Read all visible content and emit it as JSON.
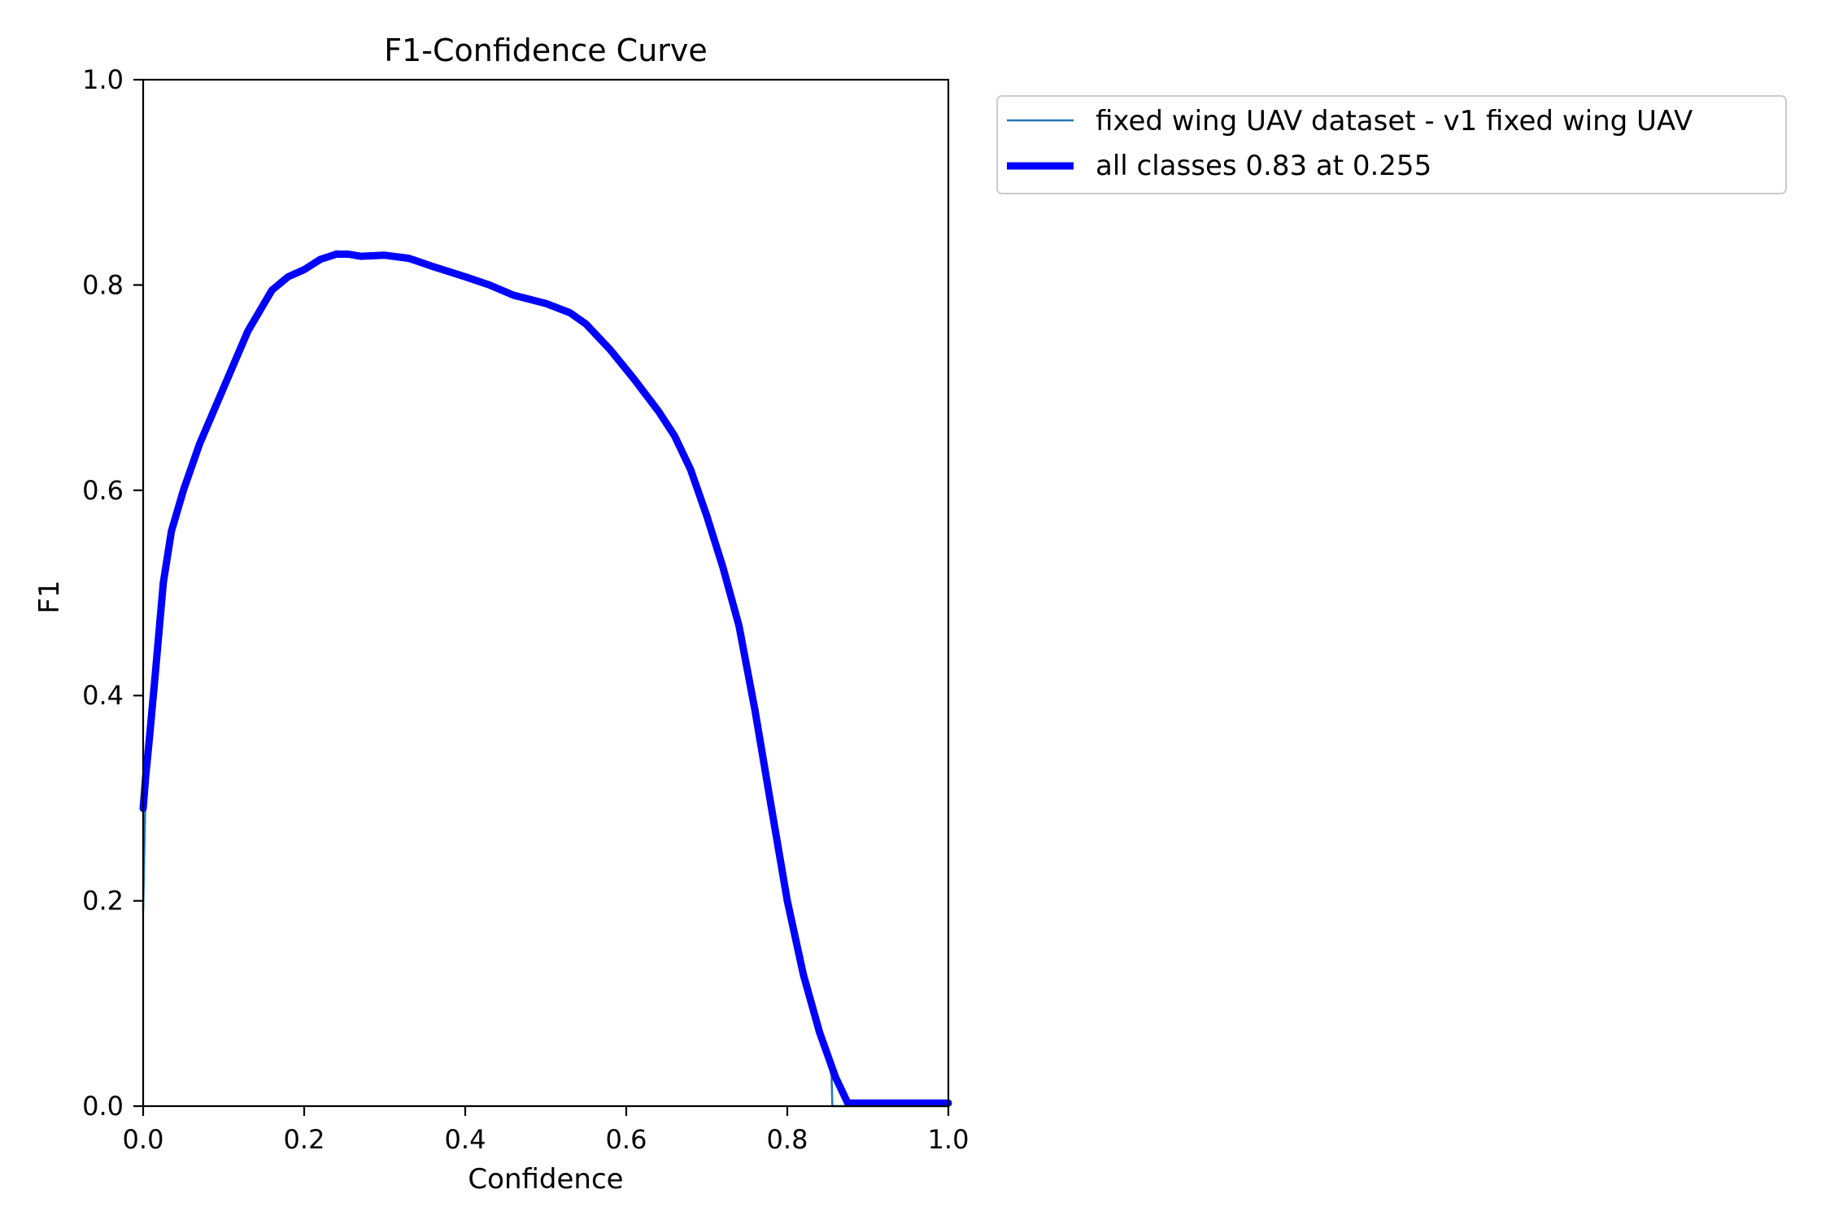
{
  "chart_data": {
    "type": "line",
    "title": "F1-Confidence Curve",
    "xlabel": "Confidence",
    "ylabel": "F1",
    "xlim": [
      0,
      1
    ],
    "ylim": [
      0,
      1
    ],
    "xticks": [
      "0.0",
      "0.2",
      "0.4",
      "0.6",
      "0.8",
      "1.0"
    ],
    "yticks": [
      "0.0",
      "0.2",
      "0.4",
      "0.6",
      "0.8",
      "1.0"
    ],
    "grid": false,
    "legend_position": "outside-upper-right",
    "series": [
      {
        "name": "fixed wing UAV dataset - v1 fixed wing UAV",
        "color": "#1f77b4",
        "style": "thin",
        "x": [
          0,
          0.003,
          0.008,
          0.015,
          0.025,
          0.035,
          0.05,
          0.07,
          0.1,
          0.13,
          0.16,
          0.18,
          0.2,
          0.22,
          0.24,
          0.255,
          0.27,
          0.3,
          0.33,
          0.36,
          0.4,
          0.43,
          0.46,
          0.5,
          0.53,
          0.55,
          0.58,
          0.61,
          0.64,
          0.66,
          0.68,
          0.7,
          0.72,
          0.74,
          0.76,
          0.78,
          0.8,
          0.82,
          0.84,
          0.855,
          0.856,
          0.87,
          0.9,
          0.95,
          1.0
        ],
        "y": [
          0.19,
          0.31,
          0.36,
          0.42,
          0.51,
          0.56,
          0.6,
          0.645,
          0.7,
          0.755,
          0.795,
          0.808,
          0.815,
          0.825,
          0.833,
          0.83,
          0.828,
          0.829,
          0.825,
          0.818,
          0.808,
          0.8,
          0.79,
          0.782,
          0.773,
          0.762,
          0.737,
          0.708,
          0.677,
          0.653,
          0.62,
          0.575,
          0.525,
          0.468,
          0.385,
          0.292,
          0.2,
          0.128,
          0.072,
          0.03,
          0.0,
          0.0,
          0.0,
          0.0,
          0.0
        ]
      },
      {
        "name": "all classes 0.83 at 0.255",
        "color": "#0000ff",
        "style": "thick",
        "x": [
          0,
          0.003,
          0.008,
          0.015,
          0.025,
          0.035,
          0.05,
          0.07,
          0.1,
          0.13,
          0.16,
          0.18,
          0.2,
          0.22,
          0.24,
          0.255,
          0.27,
          0.3,
          0.33,
          0.36,
          0.4,
          0.43,
          0.46,
          0.5,
          0.53,
          0.55,
          0.58,
          0.61,
          0.64,
          0.66,
          0.68,
          0.7,
          0.72,
          0.74,
          0.76,
          0.78,
          0.8,
          0.82,
          0.84,
          0.86,
          0.875,
          0.9,
          0.95,
          1.0
        ],
        "y": [
          0.29,
          0.32,
          0.36,
          0.42,
          0.51,
          0.56,
          0.6,
          0.645,
          0.7,
          0.755,
          0.795,
          0.808,
          0.815,
          0.825,
          0.83,
          0.83,
          0.828,
          0.829,
          0.826,
          0.818,
          0.808,
          0.8,
          0.79,
          0.782,
          0.773,
          0.762,
          0.737,
          0.708,
          0.677,
          0.653,
          0.62,
          0.575,
          0.525,
          0.468,
          0.385,
          0.292,
          0.2,
          0.128,
          0.072,
          0.028,
          0.003,
          0.003,
          0.003,
          0.003
        ]
      }
    ]
  }
}
